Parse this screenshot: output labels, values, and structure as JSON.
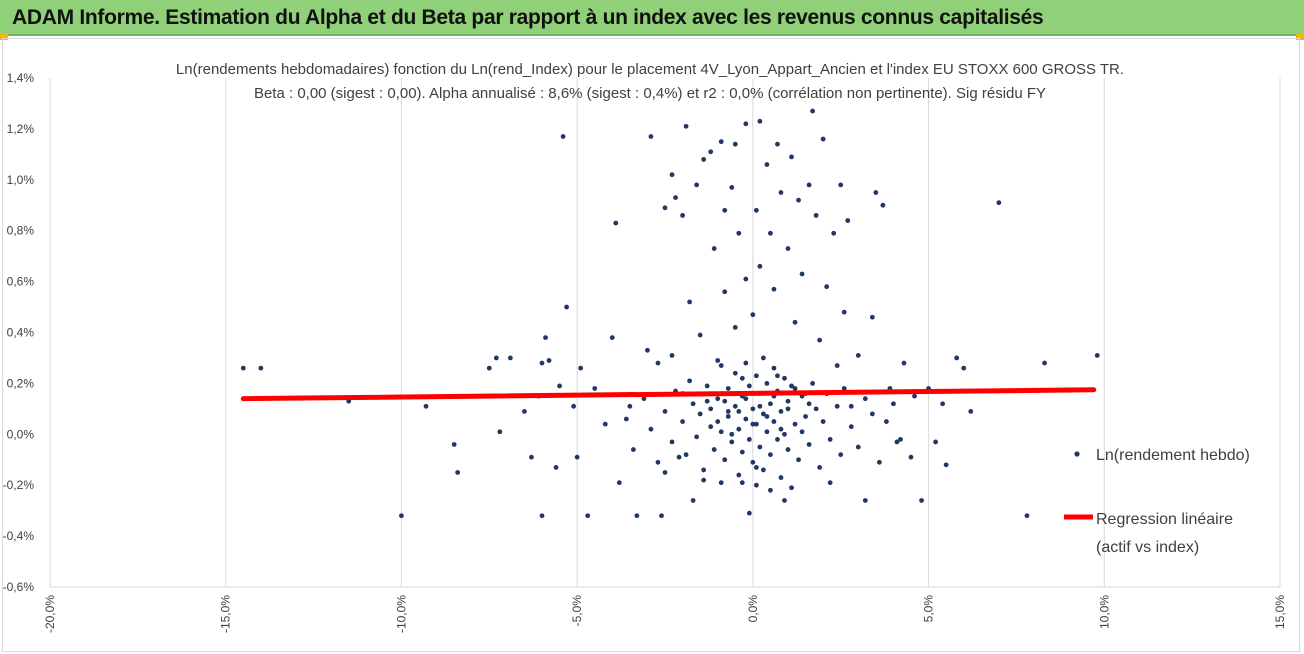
{
  "banner": {
    "title": "ADAM Informe. Estimation du Alpha et du Beta par rapport à un index avec les revenus connus capitalisés"
  },
  "colors": {
    "banner_bg": "#8fd078",
    "points": "#1f3864",
    "regression": "#ff0000",
    "grid": "#d9d9d9"
  },
  "chart_data": {
    "type": "scatter",
    "title": "Ln(rendements hebdomadaires) fonction du Ln(rend_Index) pour le placement 4V_Lyon_Appart_Ancien et l'index EU STOXX 600 GROSS TR.",
    "subtitle": "Beta : 0,00 (sigest : 0,00). Alpha annualisé : 8,6% (sigest : 0,4%) et r2 : 0,0% (corrélation non pertinente). Sig résidu FY",
    "xlim": [
      -20,
      15
    ],
    "ylim": [
      -0.6,
      1.4
    ],
    "x_ticks": [
      "-20,0%",
      "-15,0%",
      "-10,0%",
      "-5,0%",
      "0,0%",
      "5,0%",
      "10,0%",
      "15,0%"
    ],
    "y_ticks": [
      "-0,6%",
      "-0,4%",
      "-0,2%",
      "0,0%",
      "0,2%",
      "0,4%",
      "0,6%",
      "0,8%",
      "1,0%",
      "1,2%",
      "1,4%"
    ],
    "grid": "vertical",
    "legend_position": "right",
    "series": [
      {
        "name": "Ln(rendement hebdo)",
        "kind": "scatter",
        "points": [
          [
            -14.5,
            0.26
          ],
          [
            -14.0,
            0.26
          ],
          [
            -11.5,
            0.13
          ],
          [
            -10.0,
            -0.32
          ],
          [
            -9.3,
            0.11
          ],
          [
            -8.5,
            -0.04
          ],
          [
            -8.4,
            -0.15
          ],
          [
            -7.5,
            0.26
          ],
          [
            -7.3,
            0.3
          ],
          [
            -7.2,
            0.01
          ],
          [
            -6.9,
            0.3
          ],
          [
            -6.5,
            0.09
          ],
          [
            -6.3,
            -0.09
          ],
          [
            -6.1,
            0.15
          ],
          [
            -6.0,
            0.28
          ],
          [
            -6.0,
            -0.32
          ],
          [
            -5.9,
            0.38
          ],
          [
            -5.8,
            0.29
          ],
          [
            -5.6,
            -0.13
          ],
          [
            -5.5,
            0.19
          ],
          [
            -5.4,
            1.17
          ],
          [
            -5.3,
            0.5
          ],
          [
            -5.1,
            0.11
          ],
          [
            -5.0,
            -0.09
          ],
          [
            -4.9,
            0.26
          ],
          [
            -4.7,
            -0.32
          ],
          [
            -4.5,
            0.18
          ],
          [
            -4.2,
            0.04
          ],
          [
            -4.0,
            0.38
          ],
          [
            -3.9,
            0.83
          ],
          [
            -3.8,
            -0.19
          ],
          [
            -3.5,
            0.11
          ],
          [
            -3.3,
            -0.32
          ],
          [
            -3.0,
            0.33
          ],
          [
            -2.9,
            1.17
          ],
          [
            -2.7,
            0.28
          ],
          [
            -2.6,
            -0.32
          ],
          [
            -2.5,
            0.89
          ],
          [
            -2.5,
            -0.15
          ],
          [
            -2.3,
            1.02
          ],
          [
            -2.3,
            0.31
          ],
          [
            -2.2,
            0.93
          ],
          [
            -2.1,
            -0.09
          ],
          [
            -2.0,
            0.86
          ],
          [
            -2.0,
            0.16
          ],
          [
            -1.9,
            1.21
          ],
          [
            -1.8,
            0.52
          ],
          [
            -1.7,
            -0.26
          ],
          [
            -1.6,
            0.98
          ],
          [
            -1.5,
            0.39
          ],
          [
            -1.4,
            1.08
          ],
          [
            -1.3,
            0.13
          ],
          [
            -1.2,
            1.11
          ],
          [
            -1.1,
            0.73
          ],
          [
            -1.0,
            0.29
          ],
          [
            -0.9,
            1.15
          ],
          [
            -0.9,
            -0.19
          ],
          [
            -0.8,
            0.88
          ],
          [
            -0.8,
            0.56
          ],
          [
            -0.7,
            0.09
          ],
          [
            -0.6,
            0.97
          ],
          [
            -0.5,
            1.14
          ],
          [
            -0.5,
            0.42
          ],
          [
            -0.4,
            0.79
          ],
          [
            -0.3,
            0.22
          ],
          [
            -0.2,
            1.22
          ],
          [
            -0.2,
            0.61
          ],
          [
            -0.1,
            -0.31
          ],
          [
            0.0,
            0.47
          ],
          [
            0.1,
            0.88
          ],
          [
            0.1,
            -0.13
          ],
          [
            0.2,
            1.23
          ],
          [
            0.2,
            0.66
          ],
          [
            0.3,
            0.3
          ],
          [
            0.4,
            1.06
          ],
          [
            0.5,
            0.79
          ],
          [
            0.6,
            0.57
          ],
          [
            0.7,
            1.14
          ],
          [
            0.7,
            0.23
          ],
          [
            0.8,
            0.95
          ],
          [
            0.9,
            -0.26
          ],
          [
            1.0,
            0.73
          ],
          [
            1.1,
            1.09
          ],
          [
            1.2,
            0.44
          ],
          [
            1.3,
            0.92
          ],
          [
            1.4,
            0.63
          ],
          [
            1.5,
            0.16
          ],
          [
            1.6,
            0.98
          ],
          [
            1.7,
            1.27
          ],
          [
            1.8,
            0.86
          ],
          [
            1.9,
            0.37
          ],
          [
            2.0,
            1.16
          ],
          [
            2.1,
            0.58
          ],
          [
            2.2,
            -0.19
          ],
          [
            2.3,
            0.79
          ],
          [
            2.4,
            0.27
          ],
          [
            2.5,
            0.98
          ],
          [
            2.6,
            0.48
          ],
          [
            2.7,
            0.84
          ],
          [
            2.8,
            0.11
          ],
          [
            3.0,
            0.31
          ],
          [
            3.2,
            -0.26
          ],
          [
            3.4,
            0.46
          ],
          [
            3.5,
            0.95
          ],
          [
            3.7,
            0.9
          ],
          [
            3.9,
            0.18
          ],
          [
            4.1,
            -0.03
          ],
          [
            4.3,
            0.28
          ],
          [
            4.5,
            -0.09
          ],
          [
            4.6,
            0.15
          ],
          [
            4.8,
            -0.26
          ],
          [
            5.0,
            0.18
          ],
          [
            5.2,
            -0.03
          ],
          [
            5.4,
            0.12
          ],
          [
            5.5,
            -0.12
          ],
          [
            5.8,
            0.3
          ],
          [
            6.0,
            0.26
          ],
          [
            6.2,
            0.09
          ],
          [
            7.0,
            0.91
          ],
          [
            7.8,
            -0.32
          ],
          [
            8.3,
            0.28
          ],
          [
            9.8,
            0.31
          ],
          [
            -3.6,
            0.06
          ],
          [
            -3.4,
            -0.06
          ],
          [
            -3.1,
            0.14
          ],
          [
            -2.9,
            0.02
          ],
          [
            -2.7,
            -0.11
          ],
          [
            -2.5,
            0.09
          ],
          [
            -2.3,
            -0.03
          ],
          [
            -2.2,
            0.17
          ],
          [
            -2.0,
            0.05
          ],
          [
            -1.9,
            -0.08
          ],
          [
            -1.8,
            0.21
          ],
          [
            -1.7,
            0.12
          ],
          [
            -1.6,
            -0.01
          ],
          [
            -1.5,
            0.08
          ],
          [
            -1.4,
            -0.14
          ],
          [
            -1.3,
            0.19
          ],
          [
            -1.2,
            0.03
          ],
          [
            -1.1,
            -0.06
          ],
          [
            -1.0,
            0.14
          ],
          [
            -0.9,
            0.27
          ],
          [
            -0.9,
            0.01
          ],
          [
            -0.8,
            -0.1
          ],
          [
            -0.7,
            0.18
          ],
          [
            -0.7,
            0.07
          ],
          [
            -0.6,
            -0.03
          ],
          [
            -0.5,
            0.24
          ],
          [
            -0.5,
            0.11
          ],
          [
            -0.4,
            -0.16
          ],
          [
            -0.4,
            0.02
          ],
          [
            -0.3,
            0.15
          ],
          [
            -0.3,
            -0.07
          ],
          [
            -0.2,
            0.28
          ],
          [
            -0.2,
            0.06
          ],
          [
            -0.1,
            0.19
          ],
          [
            -0.1,
            -0.02
          ],
          [
            0.0,
            0.1
          ],
          [
            0.0,
            -0.11
          ],
          [
            0.1,
            0.23
          ],
          [
            0.1,
            0.04
          ],
          [
            0.2,
            -0.05
          ],
          [
            0.2,
            0.16
          ],
          [
            0.3,
            0.08
          ],
          [
            0.3,
            -0.14
          ],
          [
            0.4,
            0.2
          ],
          [
            0.4,
            0.01
          ],
          [
            0.5,
            0.12
          ],
          [
            0.5,
            -0.08
          ],
          [
            0.6,
            0.26
          ],
          [
            0.6,
            0.05
          ],
          [
            0.7,
            -0.02
          ],
          [
            0.7,
            0.17
          ],
          [
            0.8,
            0.09
          ],
          [
            0.8,
            -0.17
          ],
          [
            0.9,
            0.22
          ],
          [
            0.9,
            0.0
          ],
          [
            1.0,
            0.13
          ],
          [
            1.0,
            -0.06
          ],
          [
            1.1,
            0.19
          ],
          [
            1.2,
            0.04
          ],
          [
            1.3,
            -0.1
          ],
          [
            1.4,
            0.15
          ],
          [
            1.5,
            0.07
          ],
          [
            1.6,
            -0.04
          ],
          [
            1.7,
            0.2
          ],
          [
            1.8,
            0.1
          ],
          [
            1.9,
            -0.13
          ],
          [
            2.0,
            0.05
          ],
          [
            2.1,
            0.16
          ],
          [
            2.2,
            -0.02
          ],
          [
            2.4,
            0.11
          ],
          [
            2.5,
            -0.08
          ],
          [
            2.6,
            0.18
          ],
          [
            2.8,
            0.03
          ],
          [
            3.0,
            -0.05
          ],
          [
            3.2,
            0.14
          ],
          [
            3.4,
            0.08
          ],
          [
            3.6,
            -0.11
          ],
          [
            3.8,
            0.05
          ],
          [
            4.0,
            0.12
          ],
          [
            4.2,
            -0.02
          ],
          [
            -1.2,
            0.1
          ],
          [
            -1.0,
            0.05
          ],
          [
            -0.8,
            0.13
          ],
          [
            -0.6,
            0.0
          ],
          [
            -0.4,
            0.09
          ],
          [
            -0.2,
            0.14
          ],
          [
            0.0,
            0.04
          ],
          [
            0.2,
            0.11
          ],
          [
            0.4,
            0.07
          ],
          [
            0.6,
            0.15
          ],
          [
            0.8,
            0.02
          ],
          [
            1.0,
            0.1
          ],
          [
            1.2,
            0.18
          ],
          [
            1.4,
            0.01
          ],
          [
            1.6,
            0.12
          ],
          [
            0.1,
            -0.2
          ],
          [
            0.5,
            -0.22
          ],
          [
            -0.3,
            -0.19
          ],
          [
            1.1,
            -0.21
          ],
          [
            -1.4,
            -0.18
          ]
        ]
      },
      {
        "name": "Regression linéaire",
        "name_line2": "(actif vs index)",
        "kind": "line",
        "x": [
          -14.5,
          9.7
        ],
        "y": [
          0.14,
          0.175
        ]
      }
    ]
  }
}
